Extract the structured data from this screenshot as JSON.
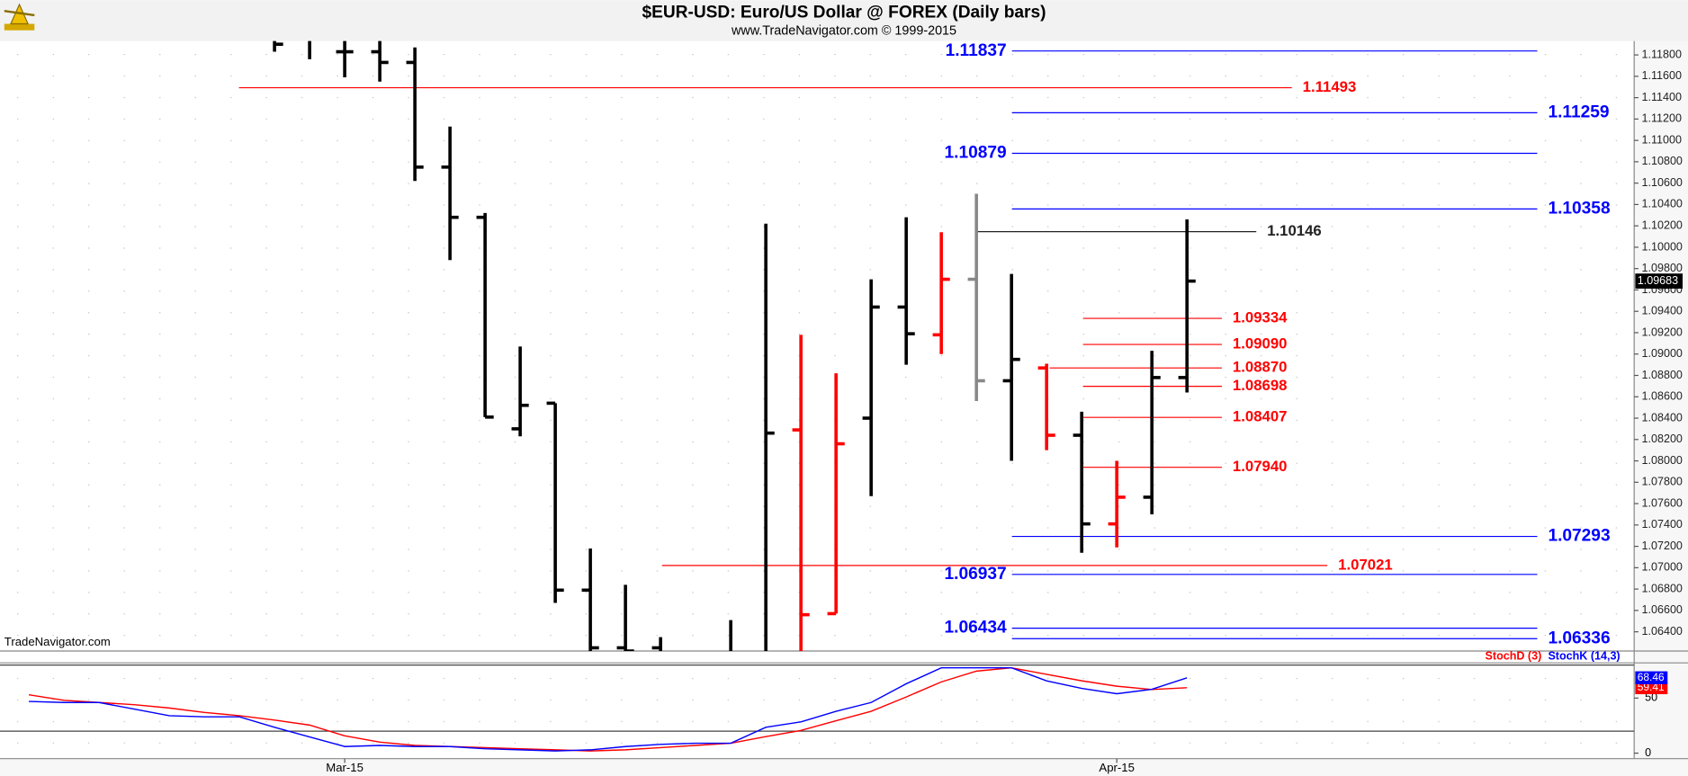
{
  "chart_data": {
    "type": "ohlc",
    "title": "$EUR-USD:  Euro/US Dollar @ FOREX  (Daily bars)",
    "subtitle": "www.TradeNavigator.com © 1999-2015",
    "watermark": "TradeNavigator.com",
    "categories": [
      null,
      null,
      null,
      null,
      null,
      null,
      null,
      null,
      null,
      "Mar-15",
      null,
      null,
      null,
      null,
      null,
      null,
      null,
      null,
      null,
      null,
      null,
      null,
      null,
      null,
      null,
      null,
      null,
      null,
      null,
      null,
      null,
      "Apr-15",
      null,
      null
    ],
    "open": [
      null,
      null,
      null,
      null,
      null,
      null,
      null,
      1.1195,
      1.12,
      1.1183,
      1.1183,
      1.1173,
      1.1075,
      1.1028,
      1.083,
      1.0854,
      1.0679,
      1.0625,
      1.0625,
      null,
      1.06,
      1.061,
      1.0829,
      1.0657,
      1.084,
      1.0944,
      1.0918,
      1.097,
      1.0875,
      1.0887,
      1.0824,
      1.0741,
      1.0766,
      1.0878
    ],
    "high": [
      null,
      null,
      null,
      null,
      null,
      null,
      null,
      1.1205,
      1.121,
      1.12,
      1.12,
      1.1187,
      1.1113,
      1.1032,
      1.0907,
      1.0854,
      1.0718,
      1.0684,
      1.0635,
      null,
      1.0651,
      1.1022,
      1.0918,
      1.0882,
      1.097,
      1.1028,
      1.1014,
      1.105,
      1.0975,
      1.0891,
      1.0846,
      1.08,
      1.0903,
      1.1026
    ],
    "low": [
      null,
      null,
      null,
      null,
      null,
      null,
      null,
      1.1183,
      1.1176,
      1.1159,
      1.1155,
      1.1062,
      1.0988,
      1.0841,
      1.0823,
      1.0667,
      1.061,
      1.06,
      1.06,
      null,
      1.059,
      1.06,
      1.062,
      1.0657,
      1.0767,
      1.089,
      1.09,
      1.0856,
      1.08,
      1.081,
      1.0714,
      1.0719,
      1.075,
      1.0864
    ],
    "close": [
      null,
      null,
      null,
      null,
      null,
      null,
      null,
      1.119,
      1.1195,
      1.1183,
      1.1173,
      1.1075,
      1.1028,
      1.0841,
      1.0852,
      1.0679,
      1.0625,
      1.0622,
      1.062,
      null,
      1.061,
      1.0826,
      1.0656,
      1.0816,
      1.0944,
      1.0919,
      1.097,
      1.0875,
      1.0895,
      1.0824,
      1.0741,
      1.0766,
      1.0878,
      1.09683
    ],
    "colors": [
      null,
      null,
      null,
      null,
      null,
      null,
      null,
      "#000000",
      "#000000",
      "#000000",
      "#000000",
      "#000000",
      "#000000",
      "#000000",
      "#000000",
      "#000000",
      "#000000",
      "#000000",
      "#000000",
      null,
      "#000000",
      "#000000",
      "#ff0000",
      "#ff0000",
      "#000000",
      "#000000",
      "#ff0000",
      "#888888",
      "#000000",
      "#ff0000",
      "#000000",
      "#ff0000",
      "#000000",
      "#000000"
    ],
    "ylim": [
      1.0623,
      1.1193
    ],
    "yticks": [
      {
        "value": 1.064,
        "label": "1.06400"
      },
      {
        "value": 1.066,
        "label": "1.06600"
      },
      {
        "value": 1.068,
        "label": "1.06800"
      },
      {
        "value": 1.07,
        "label": "1.07000"
      },
      {
        "value": 1.072,
        "label": "1.07200"
      },
      {
        "value": 1.074,
        "label": "1.07400"
      },
      {
        "value": 1.076,
        "label": "1.07600"
      },
      {
        "value": 1.078,
        "label": "1.07800"
      },
      {
        "value": 1.08,
        "label": "1.08000"
      },
      {
        "value": 1.082,
        "label": "1.08200"
      },
      {
        "value": 1.084,
        "label": "1.08400"
      },
      {
        "value": 1.086,
        "label": "1.08600"
      },
      {
        "value": 1.088,
        "label": "1.08800"
      },
      {
        "value": 1.09,
        "label": "1.09000"
      },
      {
        "value": 1.092,
        "label": "1.09200"
      },
      {
        "value": 1.094,
        "label": "1.09400"
      },
      {
        "value": 1.096,
        "label": "1.09600"
      },
      {
        "value": 1.098,
        "label": "1.09800"
      },
      {
        "value": 1.1,
        "label": "1.10000"
      },
      {
        "value": 1.102,
        "label": "1.10200"
      },
      {
        "value": 1.104,
        "label": "1.10400"
      },
      {
        "value": 1.106,
        "label": "1.10600"
      },
      {
        "value": 1.108,
        "label": "1.10800"
      },
      {
        "value": 1.11,
        "label": "1.11000"
      },
      {
        "value": 1.112,
        "label": "1.11200"
      },
      {
        "value": 1.114,
        "label": "1.11400"
      },
      {
        "value": 1.116,
        "label": "1.11600"
      },
      {
        "value": 1.118,
        "label": "1.11800"
      }
    ],
    "last_price": 1.09683,
    "levels": {
      "values": [
        1.11837,
        1.11493,
        1.11259,
        1.10879,
        1.10358,
        1.10146,
        1.09334,
        1.0909,
        1.0887,
        1.08698,
        1.08407,
        1.0794,
        1.07293,
        1.07021,
        1.06937,
        1.06434,
        1.06336
      ],
      "value_labels": [
        "1.11837",
        "1.11493",
        "1.11259",
        "1.10879",
        "1.10358",
        "1.10146",
        "1.09334",
        "1.09090",
        "1.08870",
        "1.08698",
        "1.08407",
        "1.07940",
        "1.07293",
        "1.07021",
        "1.06937",
        "1.06434",
        "1.06336"
      ],
      "colors": [
        "#0000ff",
        "#ff0000",
        "#0000ff",
        "#0000ff",
        "#0000ff",
        "#222222",
        "#ff0000",
        "#ff0000",
        "#ff0000",
        "#ff0000",
        "#ff0000",
        "#ff0000",
        "#0000ff",
        "#ff0000",
        "#0000ff",
        "#0000ff",
        "#0000ff"
      ]
    },
    "stochastic": {
      "ylim": [
        -4,
        82
      ],
      "yticks": [
        0,
        50
      ],
      "levels": [
        20,
        80
      ],
      "series": [
        {
          "name": "StochD (3)",
          "color": "#ff0000",
          "values": [
            53,
            48,
            46,
            44,
            41,
            37,
            34,
            30,
            25.5,
            15.7,
            10,
            7,
            6,
            5,
            4,
            3,
            2,
            3,
            5,
            7,
            9,
            15,
            20.6,
            29.4,
            38,
            51,
            64.7,
            74.5,
            77.5,
            71.6,
            65.7,
            60.8,
            57.8,
            59.41
          ]
        },
        {
          "name": "StochK (14,3)",
          "color": "#0000ff",
          "values": [
            47,
            46,
            46,
            40,
            34,
            33,
            33,
            23.5,
            14.7,
            6,
            7,
            6,
            6,
            4,
            3,
            2,
            3,
            6,
            8,
            9,
            9,
            23.5,
            28.4,
            38,
            46,
            63,
            77.5,
            77.5,
            77.5,
            65.7,
            58.8,
            54,
            58,
            68.46
          ]
        }
      ]
    }
  }
}
